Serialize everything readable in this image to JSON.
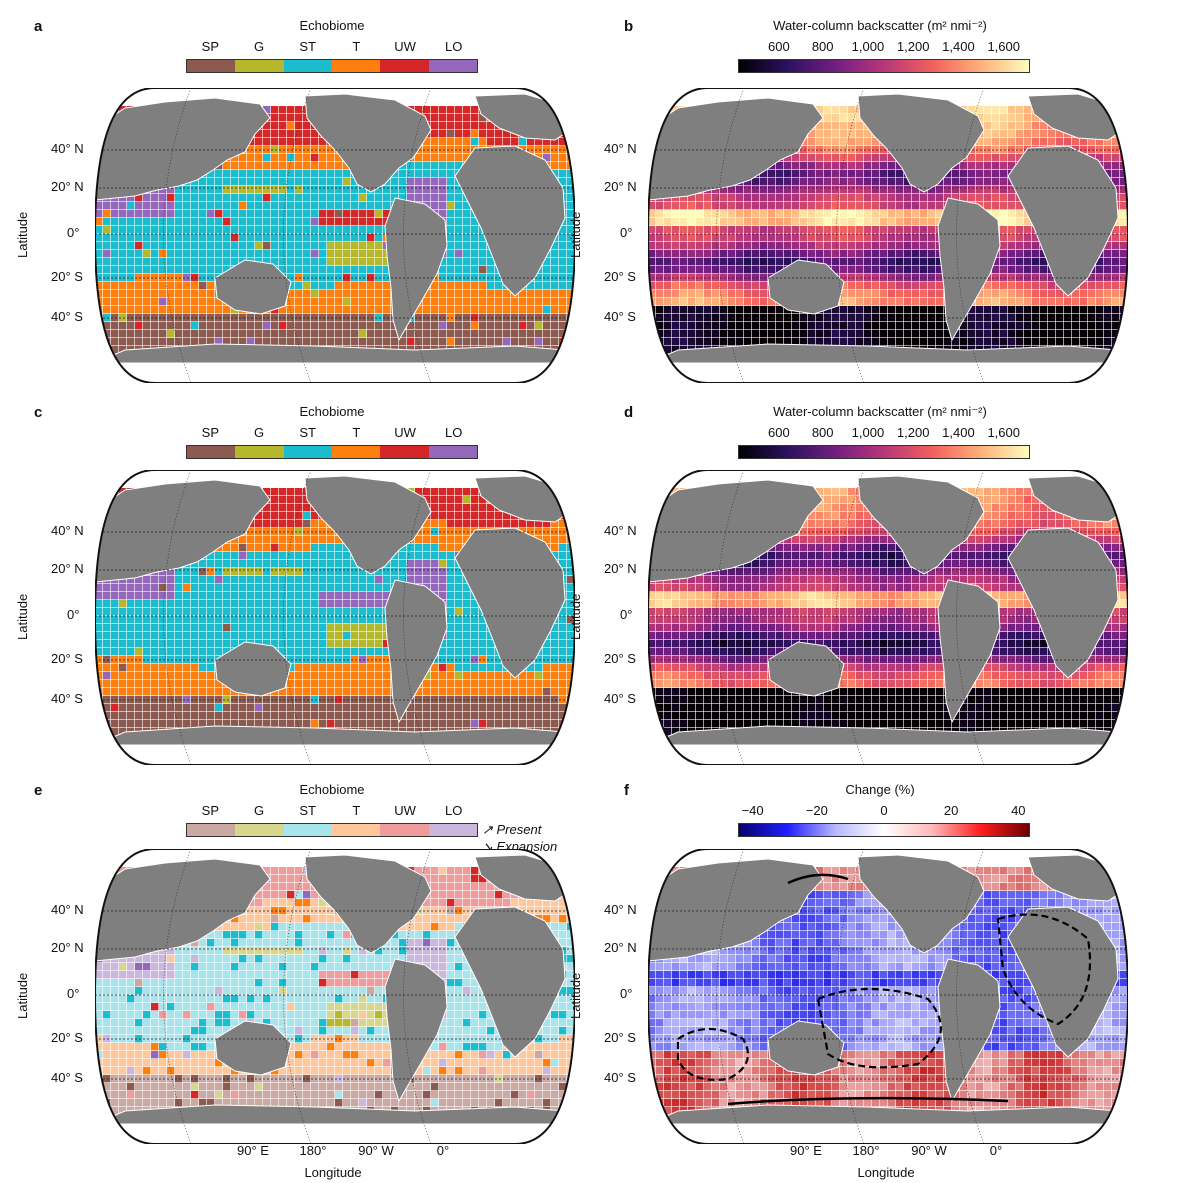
{
  "panels": {
    "a": {
      "label": "a",
      "title": "Echobiome"
    },
    "b": {
      "label": "b",
      "title": "Water-column backscatter (m² nmi⁻²)"
    },
    "c": {
      "label": "c",
      "title": "Echobiome"
    },
    "d": {
      "label": "d",
      "title": "Water-column backscatter (m² nmi⁻²)"
    },
    "e": {
      "label": "e",
      "title": "Echobiome",
      "present": "Present",
      "expansion": "Expansion"
    },
    "f": {
      "label": "f",
      "title": "Change (%)"
    }
  },
  "echobiome_categories": [
    "SP",
    "G",
    "ST",
    "T",
    "UW",
    "LO"
  ],
  "echobiome_colors": [
    "#8c5a4e",
    "#b5b82a",
    "#1cbccf",
    "#ff7f0e",
    "#d62728",
    "#9467bd"
  ],
  "echobiome_colors_present": [
    "#c9a9a2",
    "#d6d78c",
    "#a8e4ec",
    "#ffc79a",
    "#ee9c9c",
    "#cbb6de"
  ],
  "backscatter_ticks": [
    "600",
    "800",
    "1,000",
    "1,200",
    "1,400",
    "1,600"
  ],
  "change_ticks": [
    "−40",
    "−20",
    "0",
    "20",
    "40"
  ],
  "latitude_labels": [
    "40° N",
    "20° N",
    "0°",
    "20° S",
    "40° S"
  ],
  "latitude_axis": "Latitude",
  "longitude_labels": [
    "90° E",
    "180°",
    "90° W",
    "0°"
  ],
  "longitude_axis": "Longitude",
  "colors": {
    "land": "#7f7f7f",
    "ocean_border": "#111111"
  }
}
